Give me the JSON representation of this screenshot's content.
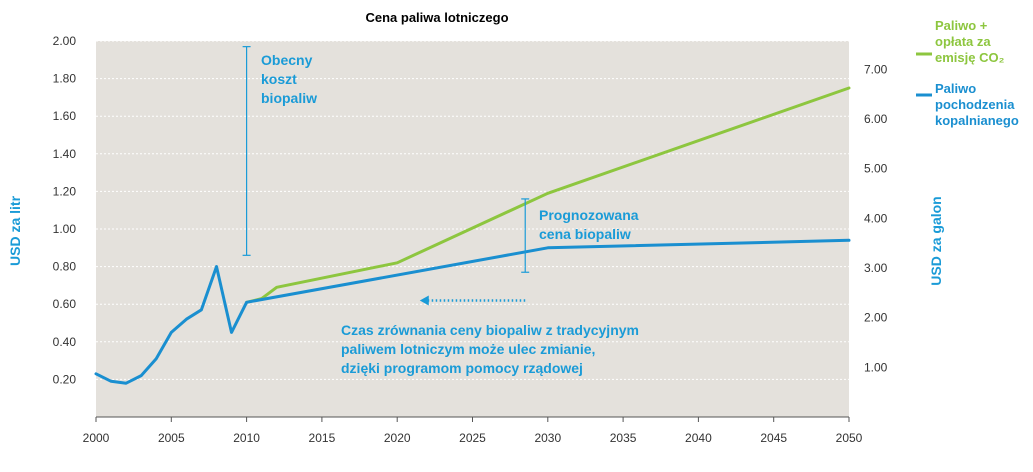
{
  "chart_data": {
    "type": "line",
    "title": "Cena paliwa lotniczego",
    "ylabel": "USD za litr",
    "ylabel_right": "USD za galon",
    "xlim": [
      2000,
      2050
    ],
    "ylim": [
      0,
      2.0
    ],
    "ylim_right": [
      0,
      7.57
    ],
    "x_ticks": [
      "2000",
      "2005",
      "2010",
      "2015",
      "2020",
      "2025",
      "2030",
      "2035",
      "2040",
      "2045",
      "2050"
    ],
    "y_ticks": [
      "0.20",
      "0.40",
      "0.60",
      "0.80",
      "1.00",
      "1.20",
      "1.40",
      "1.60",
      "1.80",
      "2.00"
    ],
    "y_right_ticks": [
      "1.00",
      "2.00",
      "3.00",
      "4.00",
      "5.00",
      "6.00",
      "7.00"
    ],
    "grid": true,
    "legend_position": "top-right",
    "series": [
      {
        "name": "Paliwo + opłata za emisję CO₂",
        "color": "#8dc63f",
        "x": [
          2010,
          2011,
          2012,
          2020,
          2030,
          2050
        ],
        "y": [
          0.61,
          0.63,
          0.69,
          0.82,
          1.19,
          1.75
        ]
      },
      {
        "name": "Paliwo pochodzenia kopalnianego",
        "color": "#1a8fd0",
        "x": [
          2000,
          2001,
          2002,
          2003,
          2004,
          2005,
          2006,
          2007,
          2008,
          2009,
          2010,
          2030,
          2050
        ],
        "y": [
          0.23,
          0.19,
          0.18,
          0.22,
          0.31,
          0.45,
          0.52,
          0.57,
          0.8,
          0.45,
          0.61,
          0.9,
          0.94
        ]
      }
    ],
    "annotations": {
      "current_cost": {
        "lines": [
          "Obecny",
          "koszt",
          "biopaliw"
        ],
        "x": 2010,
        "y_range": [
          0.86,
          1.97
        ]
      },
      "forecast": {
        "lines": [
          "Prognozowana",
          "cena biopaliw"
        ],
        "x": 2028.5,
        "y_range": [
          0.77,
          1.16
        ]
      },
      "arrow": {
        "x_from": 2028.5,
        "x_to": 2021.5,
        "y": 0.62
      },
      "note": [
        "Czas zrównania ceny biopaliw z tradycyjnym",
        "paliwem lotniczym może ulec zmianie,",
        "dzięki programom pomocy rządowej"
      ]
    },
    "legend": [
      {
        "lines": [
          "Paliwo +",
          "opłata za",
          "emisję CO₂"
        ],
        "color": "#8dc63f"
      },
      {
        "lines": [
          "Paliwo",
          "pochodzenia",
          "kopalnianego"
        ],
        "color": "#1a8fd0"
      }
    ]
  },
  "colors": {
    "plot_background": "#e4e1dc",
    "gridline": "#ffffff",
    "annotation": "#1a9bd7"
  }
}
